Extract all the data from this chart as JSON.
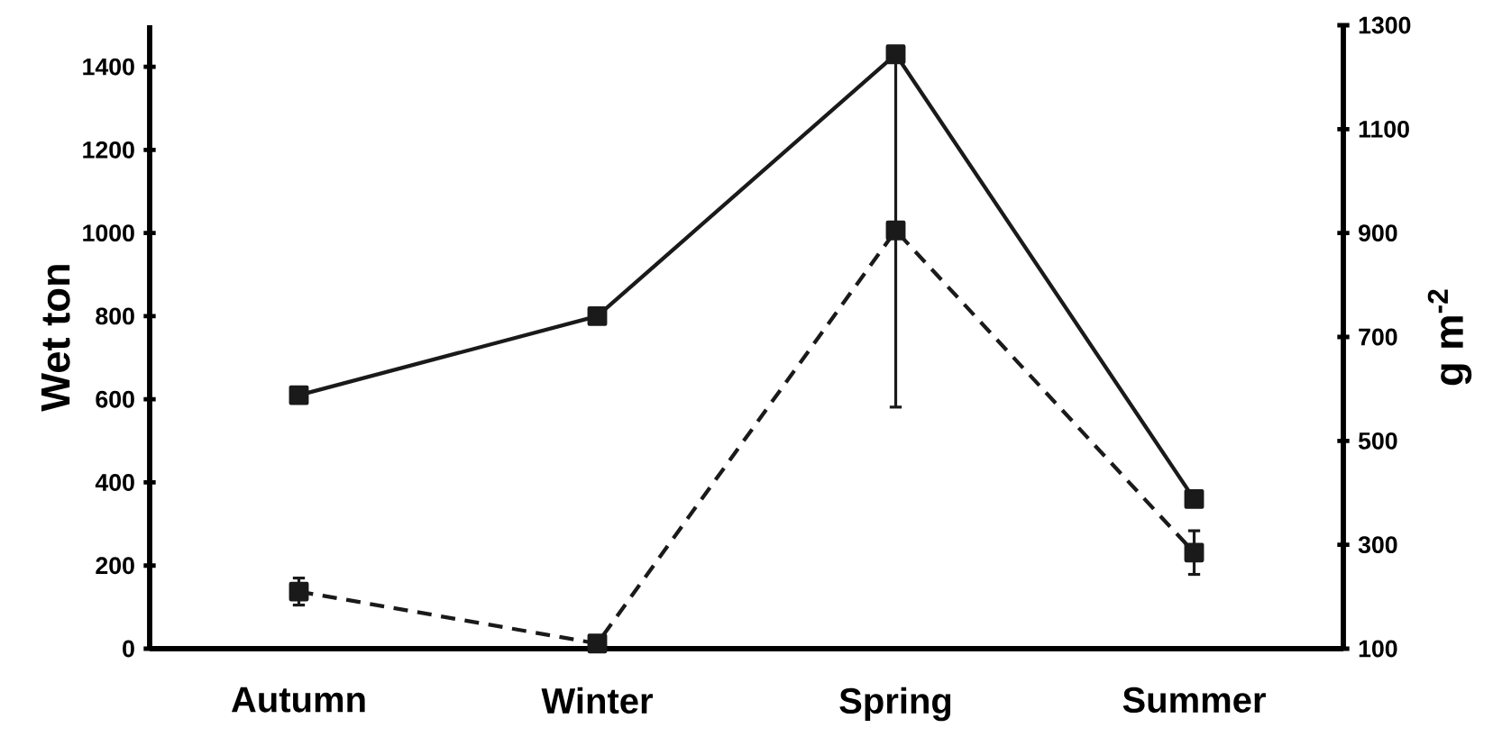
{
  "chart_data": {
    "type": "line",
    "categories": [
      "Autumn",
      "Winter",
      "Spring",
      "Summer"
    ],
    "ylabel": "Wet ton",
    "y2label": "g m$^{-2}$",
    "ylim": [
      0,
      1500
    ],
    "yticks": [
      0,
      200,
      400,
      600,
      800,
      1000,
      1200,
      1400
    ],
    "y2lim": [
      100,
      1300
    ],
    "y2ticks": [
      100,
      300,
      500,
      700,
      900,
      1100,
      1300
    ],
    "marker": "square",
    "grid": false,
    "series": [
      {
        "color": "#1a1a1a",
        "values": [
          610,
          800,
          1430,
          360
        ],
        "line_style": "solid"
      },
      {
        "color": "#1a1a1a",
        "values": [
          210,
          110,
          905,
          285
        ],
        "errors": [
          26,
          null,
          340,
          42
        ],
        "line_style": "dashed",
        "axis": "y2"
      }
    ]
  }
}
